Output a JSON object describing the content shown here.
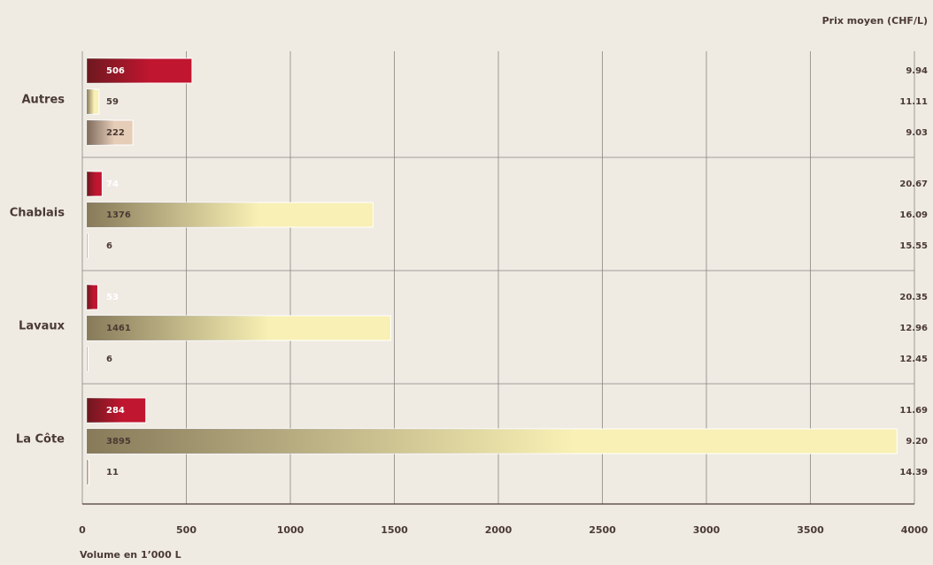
{
  "chart_data": {
    "type": "bar",
    "orientation": "horizontal",
    "axis_label": "Prix moyen (CHF/L)",
    "xlabel": "Volume en 1’000 L",
    "categories": [
      "Autres",
      "Chablais",
      "Lavaux",
      "La Côte"
    ],
    "series": [
      {
        "color": "#c01630",
        "values": [
          506,
          74,
          53,
          284
        ],
        "prices": [
          9.94,
          20.67,
          20.35,
          11.69
        ],
        "price_labels": [
          "9.94",
          "20.67",
          "20.35",
          "11.69"
        ]
      },
      {
        "color": "#f8f0b4",
        "values": [
          59,
          1376,
          1461,
          3895
        ],
        "prices": [
          11.11,
          16.09,
          12.96,
          9.2
        ],
        "price_labels": [
          "11.11",
          "16.09",
          "12.96",
          "9.20"
        ]
      },
      {
        "color": "#e6cdb8",
        "values": [
          222,
          6,
          6,
          11
        ],
        "prices": [
          9.03,
          15.55,
          12.45,
          14.39
        ],
        "price_labels": [
          "9.03",
          "15.55",
          "12.45",
          "14.39"
        ]
      }
    ],
    "xlim": [
      0,
      4000
    ],
    "xticks": [
      0,
      500,
      1000,
      1500,
      2000,
      2500,
      3000,
      3500,
      4000
    ],
    "grid": true
  }
}
